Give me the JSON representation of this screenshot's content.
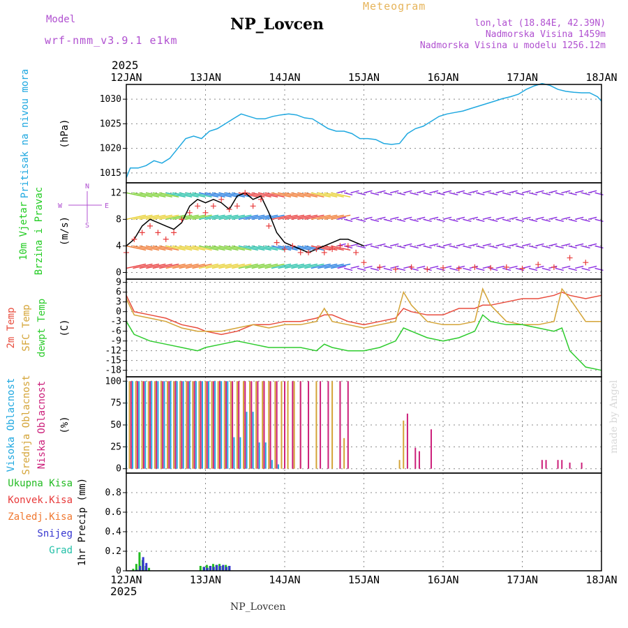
{
  "header": {
    "model_label": "Model",
    "model_name": "wrf-nmm_v3.9.1 e1km",
    "title": "NP_Lovcen",
    "subtitle": "Meteogram",
    "coords": "lon,lat (18.84E, 42.39N)",
    "elev1": "Nadmorska Visina 1459m",
    "elev2": "Nadmorska Visina u modelu 1256.12m",
    "year": "2025",
    "footer_title": "NP_Lovcen",
    "credit": "made by Angel"
  },
  "colors": {
    "pressure": "#1fa8e0",
    "wind_label": "#22cc22",
    "temp": "#e84c3d",
    "sfc_temp": "#d4a437",
    "dewpt": "#2ecc2e",
    "high_cloud": "#1fa8e0",
    "mid_cloud": "#d4a437",
    "low_cloud": "#cc1f7a",
    "model_text": "#b050d0",
    "subtitle_text": "#e6b45a",
    "total_precip": "#22bb22",
    "conv_precip": "#e83a3a",
    "frozen_precip": "#f07830",
    "snow": "#3535d0",
    "hail": "#22c0a8",
    "gridline": "#888888"
  },
  "chart_data": {
    "type": "line",
    "x_ticks": [
      "12JAN",
      "13JAN",
      "14JAN",
      "15JAN",
      "16JAN",
      "17JAN",
      "18JAN"
    ],
    "xlim": [
      0,
      6
    ],
    "panels": [
      {
        "id": "pressure",
        "labels": [
          "Pritisak na nivou mora"
        ],
        "unit": "(hPa)",
        "ylim": [
          1013,
          1033
        ],
        "yticks": [
          1015,
          1020,
          1025,
          1030
        ],
        "series": [
          {
            "name": "Pritisak na nivou mora",
            "x": [
              0,
              0.05,
              0.15,
              0.25,
              0.35,
              0.45,
              0.55,
              0.65,
              0.75,
              0.85,
              0.95,
              1.05,
              1.15,
              1.25,
              1.35,
              1.45,
              1.55,
              1.65,
              1.75,
              1.85,
              1.95,
              2.05,
              2.15,
              2.25,
              2.35,
              2.45,
              2.55,
              2.65,
              2.75,
              2.85,
              2.95,
              3.05,
              3.15,
              3.25,
              3.35,
              3.45,
              3.55,
              3.65,
              3.75,
              3.85,
              3.95,
              4.05,
              4.15,
              4.25,
              4.35,
              4.45,
              4.55,
              4.65,
              4.75,
              4.85,
              4.95,
              5.05,
              5.15,
              5.25,
              5.35,
              5.45,
              5.55,
              5.65,
              5.75,
              5.85,
              5.95,
              6.0
            ],
            "y": [
              1014,
              1016,
              1016,
              1016.5,
              1017.5,
              1017,
              1018,
              1020,
              1022,
              1022.5,
              1022,
              1023.5,
              1024,
              1025,
              1026,
              1027,
              1026.5,
              1026,
              1026,
              1026.5,
              1026.8,
              1027,
              1026.8,
              1026.2,
              1026,
              1025,
              1024,
              1023.5,
              1023.5,
              1023,
              1022,
              1022,
              1021.8,
              1021,
              1020.8,
              1021,
              1023,
              1024,
              1024.5,
              1025.5,
              1026.5,
              1027,
              1027.3,
              1027.6,
              1028.1,
              1028.6,
              1029.1,
              1029.6,
              1030.1,
              1030.5,
              1031,
              1032,
              1032.7,
              1033.2,
              1032.8,
              1032,
              1031.6,
              1031.4,
              1031.3,
              1031.3,
              1030.5,
              1029.6
            ]
          }
        ]
      },
      {
        "id": "wind",
        "labels": [
          "10m Vjetar",
          "Brzina i Pravac"
        ],
        "unit": "(m/s)",
        "compass": [
          "N",
          "W",
          "E",
          "S"
        ],
        "ylim": [
          -1,
          13.5
        ],
        "yticks": [
          0,
          4,
          8,
          12
        ],
        "series": [
          {
            "name": "Brzina",
            "x": [
              0,
              0.1,
              0.2,
              0.3,
              0.4,
              0.5,
              0.6,
              0.7,
              0.8,
              0.9,
              1.0,
              1.1,
              1.2,
              1.3,
              1.4,
              1.5,
              1.6,
              1.7,
              1.8,
              1.9,
              2.0,
              2.1,
              2.2,
              2.3,
              2.4,
              2.5,
              2.6,
              2.7,
              2.8,
              2.9,
              3.0
            ],
            "y": [
              4,
              5,
              7,
              8,
              7.5,
              7,
              6.5,
              7.5,
              10,
              11,
              10.5,
              11,
              10.5,
              9.5,
              11.5,
              12,
              11,
              11.5,
              9,
              6,
              4.5,
              4,
              3.5,
              3,
              3.5,
              4,
              4.5,
              5,
              5,
              4.5,
              4
            ]
          },
          {
            "name": "Udari",
            "x": [
              0,
              0.1,
              0.2,
              0.3,
              0.4,
              0.5,
              0.6,
              0.7,
              0.8,
              0.9,
              1.0,
              1.1,
              1.2,
              1.3,
              1.4,
              1.5,
              1.6,
              1.7,
              1.8,
              1.9,
              2.0,
              2.1,
              2.2,
              2.3,
              2.4,
              2.5,
              2.6,
              2.7,
              2.8,
              2.9,
              3.0,
              3.2,
              3.4,
              3.6,
              3.8,
              4.0,
              4.2,
              4.4,
              4.6,
              4.8,
              5.0,
              5.2,
              5.4,
              5.6,
              5.8
            ],
            "y": [
              3,
              5,
              6,
              7,
              6,
              5,
              6,
              8,
              9,
              10,
              9,
              10,
              11,
              9.5,
              10,
              12,
              10,
              11,
              7,
              4.5,
              3.5,
              4,
              3,
              3,
              3.5,
              3,
              3.5,
              4,
              4,
              3,
              1.5,
              0.8,
              0.5,
              0.8,
              0.5,
              0.7,
              0.6,
              0.8,
              0.7,
              0.8,
              0.6,
              1.2,
              0.8,
              2.2,
              1.5
            ]
          }
        ]
      },
      {
        "id": "temperature",
        "labels": [
          "2m Temp",
          "SFC Temp",
          "dewpt Temp"
        ],
        "unit": "(C)",
        "ylim": [
          -20,
          10
        ],
        "yticks": [
          -18,
          -15,
          -12,
          -9,
          -6,
          -3,
          0,
          3,
          6,
          9
        ],
        "series": [
          {
            "name": "2m Temp",
            "x": [
              0,
              0.1,
              0.3,
              0.5,
              0.7,
              0.9,
              1.0,
              1.2,
              1.4,
              1.6,
              1.8,
              2.0,
              2.2,
              2.4,
              2.5,
              2.6,
              2.8,
              3.0,
              3.2,
              3.4,
              3.5,
              3.6,
              3.8,
              4.0,
              4.2,
              4.4,
              4.5,
              4.6,
              4.8,
              5.0,
              5.2,
              5.4,
              5.5,
              5.6,
              5.8,
              6.0
            ],
            "y": [
              5,
              0,
              -1,
              -2,
              -4,
              -5,
              -6,
              -7,
              -6,
              -4,
              -4,
              -3,
              -3,
              -2,
              -1,
              -1,
              -3,
              -4,
              -3,
              -2,
              1,
              0,
              -1,
              -1,
              1,
              1,
              2,
              2,
              3,
              4,
              4,
              5,
              6,
              5,
              4,
              5
            ]
          },
          {
            "name": "SFC Temp",
            "x": [
              0,
              0.1,
              0.3,
              0.5,
              0.7,
              0.9,
              1.0,
              1.2,
              1.4,
              1.6,
              1.8,
              2.0,
              2.2,
              2.4,
              2.5,
              2.6,
              2.8,
              3.0,
              3.2,
              3.4,
              3.5,
              3.6,
              3.8,
              4.0,
              4.2,
              4.4,
              4.5,
              4.6,
              4.8,
              5.0,
              5.2,
              5.4,
              5.5,
              5.6,
              5.8,
              6.0
            ],
            "y": [
              4,
              -1,
              -2,
              -3,
              -5,
              -6,
              -6,
              -6,
              -5,
              -4,
              -5,
              -4,
              -4,
              -3,
              1,
              -3,
              -4,
              -5,
              -4,
              -3,
              6,
              2,
              -3,
              -4,
              -4,
              -3,
              7,
              2,
              -3,
              -4,
              -4,
              -3,
              7,
              4,
              -3,
              -3
            ]
          },
          {
            "name": "dewpt Temp",
            "x": [
              0,
              0.1,
              0.3,
              0.5,
              0.7,
              0.9,
              1.0,
              1.2,
              1.4,
              1.6,
              1.8,
              2.0,
              2.2,
              2.4,
              2.5,
              2.6,
              2.8,
              3.0,
              3.2,
              3.4,
              3.5,
              3.6,
              3.8,
              4.0,
              4.2,
              4.4,
              4.5,
              4.6,
              4.8,
              5.0,
              5.2,
              5.4,
              5.5,
              5.6,
              5.8,
              6.0
            ],
            "y": [
              -3,
              -7,
              -9,
              -10,
              -11,
              -12,
              -11,
              -10,
              -9,
              -10,
              -11,
              -11,
              -11,
              -12,
              -10,
              -11,
              -12,
              -12,
              -11,
              -9,
              -5,
              -6,
              -8,
              -9,
              -8,
              -6,
              -1,
              -3,
              -4,
              -4,
              -5,
              -6,
              -5,
              -12,
              -17,
              -18
            ]
          }
        ]
      },
      {
        "id": "cloud",
        "labels": [
          "Visoka Oblacnost",
          "Srednja Oblacnost",
          "Niska Oblacnost"
        ],
        "unit": "(%)",
        "ylim": [
          -5,
          105
        ],
        "yticks": [
          0,
          25,
          50,
          75,
          100
        ],
        "series": [
          {
            "name": "Visoka Oblacnost",
            "x": [
              0.0,
              0.08,
              0.16,
              0.24,
              0.32,
              0.4,
              0.48,
              0.56,
              0.64,
              0.72,
              0.8,
              0.88,
              0.96,
              1.04,
              1.12,
              1.2,
              1.28,
              1.36,
              1.44,
              1.52,
              1.6,
              1.68,
              1.76,
              1.84,
              1.92
            ],
            "y": [
              100,
              100,
              100,
              100,
              100,
              100,
              100,
              100,
              100,
              100,
              100,
              100,
              100,
              100,
              100,
              100,
              100,
              36,
              36,
              65,
              65,
              30,
              30,
              10,
              5
            ]
          },
          {
            "name": "Srednja Oblacnost",
            "x": [
              0.04,
              0.12,
              0.2,
              0.28,
              0.36,
              0.44,
              0.52,
              0.6,
              0.68,
              0.76,
              0.84,
              0.92,
              1.0,
              1.08,
              1.16,
              1.24,
              1.32,
              1.4,
              1.48,
              1.56,
              1.64,
              1.72,
              1.8,
              1.88,
              1.96,
              2.04,
              2.12,
              2.2,
              2.4,
              2.6,
              2.7,
              2.75,
              3.45,
              3.5
            ],
            "y": [
              100,
              100,
              100,
              100,
              100,
              100,
              100,
              100,
              100,
              100,
              100,
              100,
              100,
              100,
              100,
              100,
              100,
              100,
              100,
              100,
              100,
              100,
              100,
              100,
              100,
              100,
              100,
              100,
              100,
              100,
              100,
              35,
              10,
              55
            ]
          },
          {
            "name": "Niska Oblacnost",
            "x": [
              0.06,
              0.14,
              0.22,
              0.3,
              0.38,
              0.46,
              0.54,
              0.62,
              0.7,
              0.78,
              0.86,
              0.94,
              1.02,
              1.1,
              1.18,
              1.26,
              1.34,
              1.42,
              1.5,
              1.58,
              1.66,
              1.74,
              1.82,
              1.9,
              2.0,
              2.1,
              2.2,
              2.3,
              2.45,
              2.55,
              2.7,
              2.8,
              3.55,
              3.65,
              3.7,
              3.85,
              5.25,
              5.3,
              5.45,
              5.5,
              5.6,
              5.75
            ],
            "y": [
              100,
              100,
              100,
              100,
              100,
              100,
              100,
              100,
              100,
              100,
              100,
              100,
              100,
              100,
              100,
              100,
              100,
              100,
              100,
              100,
              100,
              100,
              100,
              100,
              100,
              100,
              100,
              100,
              100,
              100,
              100,
              100,
              63,
              24,
              20,
              45,
              10,
              10,
              10,
              10,
              7,
              7
            ]
          }
        ]
      },
      {
        "id": "precip",
        "labels": [
          "Ukupna Kisa",
          "Konvek.Kisa",
          "Zaledj.Kisa",
          "Snijeg",
          "Grad"
        ],
        "unit": "1hr Precip (mm)",
        "ylim": [
          0,
          1.0
        ],
        "yticks": [
          0,
          0.2,
          0.4,
          0.6,
          0.8
        ],
        "series": [
          {
            "name": "Ukupna Kisa",
            "x": [
              0.1,
              0.14,
              0.18,
              0.22,
              0.26,
              0.3,
              0.95,
              0.99,
              1.03,
              1.07,
              1.11,
              1.15,
              1.19,
              1.23,
              1.27,
              1.31
            ],
            "y": [
              0.02,
              0.07,
              0.19,
              0.11,
              0.05,
              0.03,
              0.05,
              0.04,
              0.06,
              0.05,
              0.07,
              0.06,
              0.07,
              0.05,
              0.06,
              0.05
            ]
          },
          {
            "name": "Snijeg",
            "x": [
              0.12,
              0.16,
              0.2,
              0.24,
              0.97,
              1.01,
              1.05,
              1.09,
              1.13,
              1.17,
              1.21,
              1.25,
              1.29
            ],
            "y": [
              0.01,
              0.05,
              0.14,
              0.08,
              0.04,
              0.03,
              0.05,
              0.04,
              0.06,
              0.05,
              0.06,
              0.04,
              0.05
            ]
          }
        ]
      }
    ]
  }
}
